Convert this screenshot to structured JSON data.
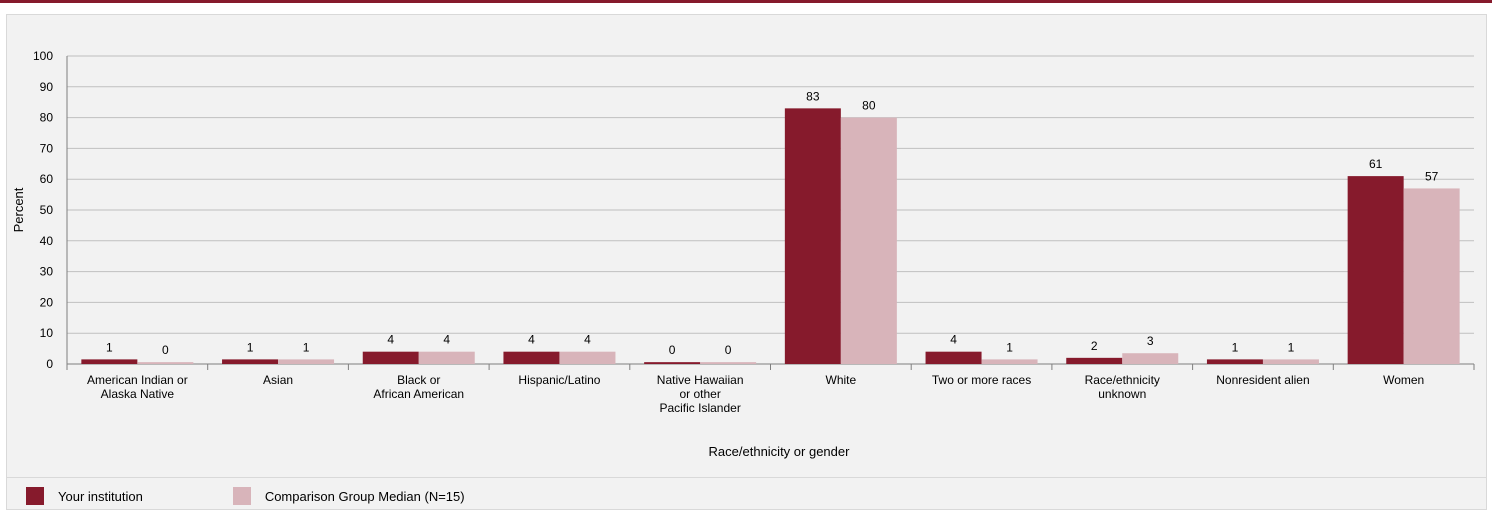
{
  "colors": {
    "accent": "#861a2c",
    "series_1": "#861a2c",
    "series_2": "#d8b4ba",
    "grid": "#bfbfbf"
  },
  "legend": {
    "items": [
      {
        "label": "Your institution",
        "color": "#861a2c"
      },
      {
        "label": "Comparison Group Median (N=15)",
        "color": "#d8b4ba"
      }
    ]
  },
  "chart_data": {
    "type": "bar",
    "xlabel": "Race/ethnicity or gender",
    "ylabel": "Percent",
    "ylim": [
      0,
      100
    ],
    "yticks": [
      0,
      10,
      20,
      30,
      40,
      50,
      60,
      70,
      80,
      90,
      100
    ],
    "grid": true,
    "legend_position": "bottom-left",
    "categories": [
      [
        "American Indian or",
        "Alaska Native"
      ],
      [
        "Asian"
      ],
      [
        "Black or",
        "African American"
      ],
      [
        "Hispanic/Latino"
      ],
      [
        "Native Hawaiian",
        "or other",
        "Pacific Islander"
      ],
      [
        "White"
      ],
      [
        "Two or more races"
      ],
      [
        "Race/ethnicity",
        "unknown"
      ],
      [
        "Nonresident alien"
      ],
      [
        "Women"
      ]
    ],
    "series": [
      {
        "name": "Your institution",
        "values": [
          1,
          1,
          4,
          4,
          0,
          83,
          4,
          2,
          1,
          61
        ],
        "bar_heights": [
          1.5,
          1.5,
          4,
          4,
          0.6,
          83,
          4,
          2,
          1.5,
          61
        ]
      },
      {
        "name": "Comparison Group Median (N=15)",
        "values": [
          0,
          1,
          4,
          4,
          0,
          80,
          1,
          3,
          1,
          57
        ],
        "bar_heights": [
          0.6,
          1.5,
          4,
          4,
          0.6,
          80,
          1.5,
          3.5,
          1.5,
          57
        ]
      }
    ]
  }
}
